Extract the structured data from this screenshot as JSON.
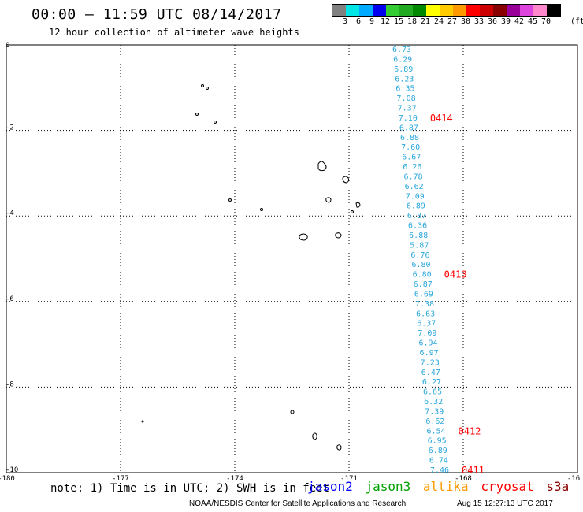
{
  "header": {
    "title": "00:00 – 11:59 UTC 08/14/2017",
    "subtitle": "12 hour collection of altimeter wave heights"
  },
  "color_scale": {
    "colors": [
      "#808080",
      "#00e5e5",
      "#00aaff",
      "#0000ee",
      "#33cc33",
      "#22aa22",
      "#008800",
      "#ffff00",
      "#ffcc00",
      "#ff9900",
      "#ff0000",
      "#cc0000",
      "#880000",
      "#990099",
      "#dd44dd",
      "#ff88cc",
      "#000000"
    ],
    "labels": [
      "3",
      "6",
      "9",
      "12",
      "15",
      "18",
      "21",
      "24",
      "27",
      "30",
      "33",
      "36",
      "39",
      "42",
      "45",
      "70"
    ],
    "unit": "(ft)"
  },
  "map": {
    "lat_labels": [
      "0",
      "-2",
      "-4",
      "-6",
      "-8",
      "-10"
    ],
    "lon_labels": [
      "-180",
      "-177",
      "-174",
      "-171",
      "-168",
      "-16"
    ],
    "lon_range": [
      -180,
      -165
    ],
    "lat_range": [
      -10,
      0
    ],
    "swh_colors": {
      "jason3": "#2aa7dc",
      "track": "#ff0000"
    },
    "swh_values": [
      "6.73",
      "6.29",
      "6.89",
      "6.23",
      "6.35",
      "7.08",
      "7.37",
      "7.10",
      "6.87",
      "6.88",
      "7.60",
      "6.67",
      "6.26",
      "6.78",
      "6.62",
      "7.09",
      "6.89",
      "6.87",
      "6.36",
      "6.88",
      "5.87",
      "6.76",
      "6.80",
      "6.80",
      "6.87",
      "6.69",
      "7.38",
      "6.63",
      "6.37",
      "7.09",
      "6.94",
      "6.97",
      "7.23",
      "6.47",
      "6.27",
      "6.65",
      "6.32",
      "7.39",
      "6.62",
      "6.54",
      "6.95",
      "6.89",
      "6.74",
      "7.46"
    ],
    "track_labels": [
      {
        "text": "0414",
        "row": 7
      },
      {
        "text": "0413",
        "row": 23
      },
      {
        "text": "0412",
        "row": 39
      },
      {
        "text": "0411",
        "row": 43
      }
    ]
  },
  "note": "note: 1) Time is in UTC; 2) SWH is in feet",
  "legend": [
    {
      "name": "jason2",
      "color": "#0000ff"
    },
    {
      "name": "jason3",
      "color": "#00a000"
    },
    {
      "name": "altika",
      "color": "#ff9900"
    },
    {
      "name": "cryosat",
      "color": "#ff0000"
    },
    {
      "name": "s3a",
      "color": "#8b0000"
    }
  ],
  "footer": {
    "org": "NOAA/NESDIS Center for Satellite Applications and Research",
    "time": "Aug 15 12:27:13 UTC 2017"
  }
}
